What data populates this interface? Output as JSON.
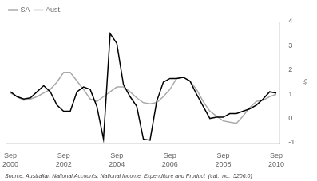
{
  "chart_data": {
    "type": "line",
    "ylabel": "%",
    "categories": [
      "Sep\n2000",
      null,
      null,
      null,
      null,
      null,
      null,
      null,
      "Sep\n2002",
      null,
      null,
      null,
      null,
      null,
      null,
      null,
      "Sep\n2004",
      null,
      null,
      null,
      null,
      null,
      null,
      null,
      "Sep\n2006",
      null,
      null,
      null,
      null,
      null,
      null,
      null,
      "Sep\n2008",
      null,
      null,
      null,
      null,
      null,
      null,
      null,
      "Sep\n2010"
    ],
    "series": [
      {
        "name": "SA",
        "color": "#000000",
        "values": [
          1.1,
          0.9,
          0.8,
          0.85,
          1.1,
          1.35,
          1.1,
          0.55,
          0.3,
          0.3,
          1.1,
          1.3,
          1.2,
          0.5,
          -0.85,
          3.5,
          3.1,
          1.4,
          0.9,
          0.5,
          -0.85,
          -0.9,
          0.7,
          1.5,
          1.65,
          1.65,
          1.7,
          1.55,
          1.0,
          0.5,
          0.0,
          0.05,
          0.05,
          0.2,
          0.2,
          0.3,
          0.4,
          0.55,
          0.8,
          1.1,
          1.05
        ]
      },
      {
        "name": "Aust.",
        "color": "#aaaaaa",
        "values": [
          1.05,
          0.9,
          0.75,
          0.8,
          0.9,
          1.05,
          1.2,
          1.5,
          1.9,
          1.9,
          1.55,
          1.2,
          0.8,
          0.7,
          0.9,
          1.1,
          1.3,
          1.3,
          1.1,
          0.85,
          0.65,
          0.6,
          0.65,
          0.9,
          1.2,
          1.65,
          1.7,
          1.55,
          1.2,
          0.7,
          0.3,
          0.1,
          -0.1,
          -0.15,
          -0.2,
          0.1,
          0.45,
          0.7,
          0.75,
          0.9,
          1.0
        ]
      }
    ],
    "ylim": [
      -1,
      4
    ],
    "yticks": [
      -1,
      0,
      1,
      2,
      3,
      4
    ],
    "grid": false,
    "legend": "upper left",
    "annotations": [
      "Source: Australian National Accounts: National Income, Expenditure and Product  (cat.  no.  5206.0)"
    ]
  }
}
